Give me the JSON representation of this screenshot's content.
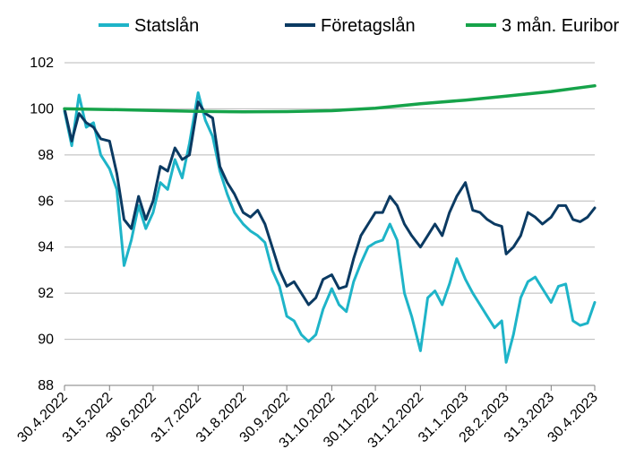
{
  "colors": {
    "statslan": "#1eb4c8",
    "foretagslan": "#0b3a62",
    "euribor": "#16a34a",
    "grid": "#b9b9b9",
    "axis": "#7f7f7f"
  },
  "chart_data": {
    "type": "line",
    "title": "",
    "xlabel": "",
    "ylabel": "",
    "ylim": [
      88,
      102
    ],
    "yticks": [
      88,
      90,
      92,
      94,
      96,
      98,
      100,
      102
    ],
    "grid": true,
    "legend_position": "top",
    "x_ticks": [
      "30.4.2022",
      "31.5.2022",
      "30.6.2022",
      "31.7.2022",
      "31.8.2022",
      "30.9.2022",
      "31.10.2022",
      "30.11.2022",
      "31.12.2022",
      "31.1.2023",
      "28.2.2023",
      "31.3.2023",
      "30.4.2023"
    ],
    "series": [
      {
        "name": "Statslån",
        "color": "#1eb4c8",
        "x": [
          "30.4.2022",
          "5.5.2022",
          "10.5.2022",
          "15.5.2022",
          "20.5.2022",
          "25.5.2022",
          "31.5.2022",
          "5.6.2022",
          "10.6.2022",
          "15.6.2022",
          "20.6.2022",
          "25.6.2022",
          "30.6.2022",
          "5.7.2022",
          "10.7.2022",
          "15.7.2022",
          "20.7.2022",
          "25.7.2022",
          "31.7.2022",
          "5.8.2022",
          "10.8.2022",
          "15.8.2022",
          "20.8.2022",
          "25.8.2022",
          "31.8.2022",
          "5.9.2022",
          "10.9.2022",
          "15.9.2022",
          "20.9.2022",
          "25.9.2022",
          "30.9.2022",
          "5.10.2022",
          "10.10.2022",
          "15.10.2022",
          "20.10.2022",
          "25.10.2022",
          "31.10.2022",
          "5.11.2022",
          "10.11.2022",
          "15.11.2022",
          "20.11.2022",
          "25.11.2022",
          "30.11.2022",
          "5.12.2022",
          "10.12.2022",
          "15.12.2022",
          "20.12.2022",
          "25.12.2022",
          "31.12.2022",
          "5.1.2023",
          "10.1.2023",
          "15.1.2023",
          "20.1.2023",
          "25.1.2023",
          "31.1.2023",
          "5.2.2023",
          "10.2.2023",
          "15.2.2023",
          "20.2.2023",
          "25.2.2023",
          "28.2.2023",
          "5.3.2023",
          "10.3.2023",
          "15.3.2023",
          "20.3.2023",
          "25.3.2023",
          "31.3.2023",
          "5.4.2023",
          "10.4.2023",
          "15.4.2023",
          "20.4.2023",
          "25.4.2023",
          "30.4.2023"
        ],
        "values": [
          99.9,
          98.4,
          100.6,
          99.2,
          99.4,
          98.0,
          97.4,
          96.5,
          93.2,
          94.3,
          95.8,
          94.8,
          95.5,
          96.8,
          96.5,
          97.8,
          97.0,
          98.5,
          100.7,
          99.5,
          98.8,
          97.3,
          96.3,
          95.5,
          95.0,
          94.7,
          94.5,
          94.2,
          93.0,
          92.3,
          91.0,
          90.8,
          90.2,
          89.9,
          90.2,
          91.3,
          92.2,
          91.5,
          91.2,
          92.5,
          93.3,
          94.0,
          94.2,
          94.3,
          95.0,
          94.3,
          92.0,
          91.0,
          89.5,
          91.8,
          92.1,
          91.5,
          92.4,
          93.5,
          92.6,
          92.0,
          91.5,
          91.0,
          90.5,
          90.8,
          89.0,
          90.2,
          91.8,
          92.5,
          92.7,
          92.2,
          91.6,
          92.3,
          92.4,
          90.8,
          90.6,
          90.7,
          91.6
        ]
      },
      {
        "name": "Företagslån",
        "color": "#0b3a62",
        "x": [
          "30.4.2022",
          "5.5.2022",
          "10.5.2022",
          "15.5.2022",
          "20.5.2022",
          "25.5.2022",
          "31.5.2022",
          "5.6.2022",
          "10.6.2022",
          "15.6.2022",
          "20.6.2022",
          "25.6.2022",
          "30.6.2022",
          "5.7.2022",
          "10.7.2022",
          "15.7.2022",
          "20.7.2022",
          "25.7.2022",
          "31.7.2022",
          "5.8.2022",
          "10.8.2022",
          "15.8.2022",
          "20.8.2022",
          "25.8.2022",
          "31.8.2022",
          "5.9.2022",
          "10.9.2022",
          "15.9.2022",
          "20.9.2022",
          "25.9.2022",
          "30.9.2022",
          "5.10.2022",
          "10.10.2022",
          "15.10.2022",
          "20.10.2022",
          "25.10.2022",
          "31.10.2022",
          "5.11.2022",
          "10.11.2022",
          "15.11.2022",
          "20.11.2022",
          "25.11.2022",
          "30.11.2022",
          "5.12.2022",
          "10.12.2022",
          "15.12.2022",
          "20.12.2022",
          "25.12.2022",
          "31.12.2022",
          "5.1.2023",
          "10.1.2023",
          "15.1.2023",
          "20.1.2023",
          "25.1.2023",
          "31.1.2023",
          "5.2.2023",
          "10.2.2023",
          "15.2.2023",
          "20.2.2023",
          "25.2.2023",
          "28.2.2023",
          "5.3.2023",
          "10.3.2023",
          "15.3.2023",
          "20.3.2023",
          "25.3.2023",
          "31.3.2023",
          "5.4.2023",
          "10.4.2023",
          "15.4.2023",
          "20.4.2023",
          "25.4.2023",
          "30.4.2023"
        ],
        "values": [
          100.0,
          98.6,
          99.8,
          99.4,
          99.2,
          98.7,
          98.6,
          97.2,
          95.2,
          94.8,
          96.2,
          95.2,
          96.0,
          97.5,
          97.3,
          98.3,
          97.8,
          98.0,
          100.3,
          99.8,
          99.6,
          97.5,
          96.8,
          96.3,
          95.5,
          95.3,
          95.6,
          95.0,
          94.0,
          93.0,
          92.3,
          92.5,
          92.0,
          91.5,
          91.8,
          92.6,
          92.8,
          92.2,
          92.3,
          93.5,
          94.5,
          95.0,
          95.5,
          95.5,
          96.2,
          95.8,
          95.0,
          94.5,
          94.0,
          94.5,
          95.0,
          94.5,
          95.5,
          96.2,
          96.8,
          95.6,
          95.5,
          95.2,
          95.0,
          94.9,
          93.7,
          94.0,
          94.5,
          95.5,
          95.3,
          95.0,
          95.3,
          95.8,
          95.8,
          95.2,
          95.1,
          95.3,
          95.7
        ]
      },
      {
        "name": "3 mån. Euribor",
        "color": "#16a34a",
        "x": [
          "30.4.2022",
          "31.5.2022",
          "30.6.2022",
          "31.7.2022",
          "31.8.2022",
          "30.9.2022",
          "31.10.2022",
          "30.11.2022",
          "31.12.2022",
          "31.1.2023",
          "28.2.2023",
          "31.3.2023",
          "30.4.2023"
        ],
        "values": [
          100.0,
          99.97,
          99.93,
          99.89,
          99.87,
          99.88,
          99.92,
          100.03,
          100.22,
          100.38,
          100.55,
          100.75,
          101.0
        ]
      }
    ]
  }
}
